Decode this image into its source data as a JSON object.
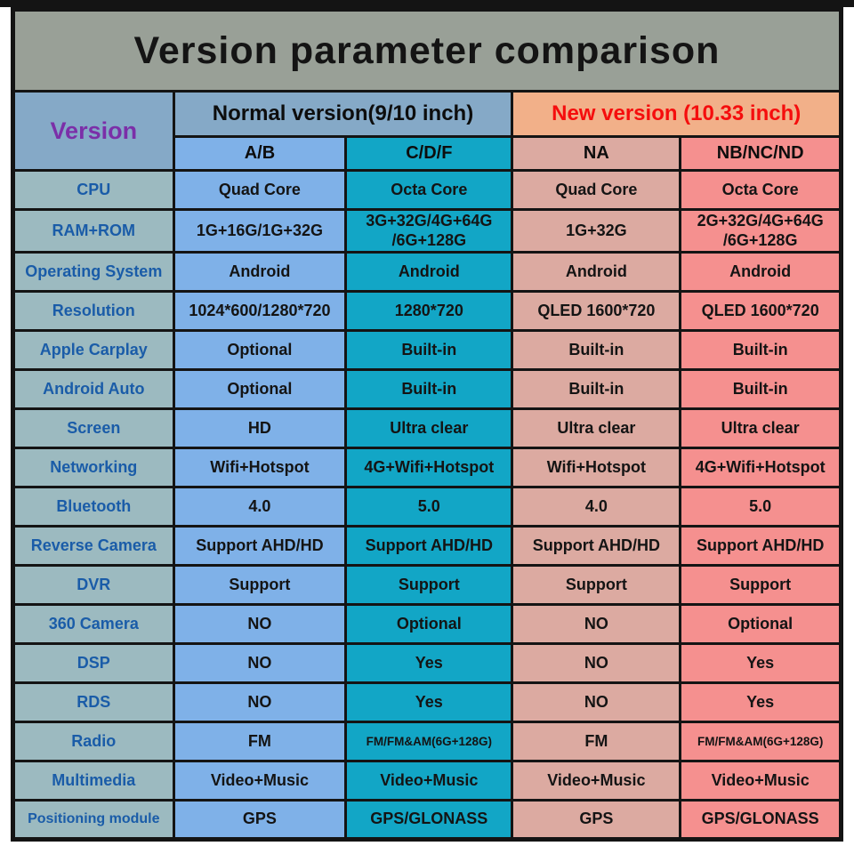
{
  "title": "Version parameter comparison",
  "header": {
    "version_label": "Version",
    "groups": [
      {
        "label": "Normal version(9/10 inch)"
      },
      {
        "label": "New version (10.33 inch)"
      }
    ],
    "columns": [
      {
        "label": "A/B"
      },
      {
        "label": "C/D/F"
      },
      {
        "label": "NA"
      },
      {
        "label": "NB/NC/ND"
      }
    ]
  },
  "rows": [
    {
      "label": "CPU",
      "values": [
        "Quad Core",
        "Octa Core",
        "Quad Core",
        "Octa Core"
      ]
    },
    {
      "label": "RAM+ROM",
      "values": [
        "1G+16G/1G+32G",
        "3G+32G/4G+64G\n/6G+128G",
        "1G+32G",
        "2G+32G/4G+64G\n/6G+128G"
      ]
    },
    {
      "label": "Operating System",
      "values": [
        "Android",
        "Android",
        "Android",
        "Android"
      ]
    },
    {
      "label": "Resolution",
      "values": [
        "1024*600/1280*720",
        "1280*720",
        "QLED 1600*720",
        "QLED 1600*720"
      ]
    },
    {
      "label": "Apple Carplay",
      "values": [
        "Optional",
        "Built-in",
        "Built-in",
        "Built-in"
      ]
    },
    {
      "label": "Android Auto",
      "values": [
        "Optional",
        "Built-in",
        "Built-in",
        "Built-in"
      ]
    },
    {
      "label": "Screen",
      "values": [
        "HD",
        "Ultra clear",
        "Ultra clear",
        "Ultra clear"
      ]
    },
    {
      "label": "Networking",
      "values": [
        "Wifi+Hotspot",
        "4G+Wifi+Hotspot",
        "Wifi+Hotspot",
        "4G+Wifi+Hotspot"
      ]
    },
    {
      "label": "Bluetooth",
      "values": [
        "4.0",
        "5.0",
        "4.0",
        "5.0"
      ]
    },
    {
      "label": "Reverse Camera",
      "values": [
        "Support AHD/HD",
        "Support AHD/HD",
        "Support AHD/HD",
        "Support AHD/HD"
      ]
    },
    {
      "label": "DVR",
      "values": [
        "Support",
        "Support",
        "Support",
        "Support"
      ]
    },
    {
      "label": "360 Camera",
      "values": [
        "NO",
        "Optional",
        "NO",
        "Optional"
      ]
    },
    {
      "label": "DSP",
      "values": [
        "NO",
        "Yes",
        "NO",
        "Yes"
      ]
    },
    {
      "label": "RDS",
      "values": [
        "NO",
        "Yes",
        "NO",
        "Yes"
      ]
    },
    {
      "label": "Radio",
      "values": [
        "FM",
        "FM/FM&AM(6G+128G)",
        "FM",
        "FM/FM&AM(6G+128G)"
      ]
    },
    {
      "label": "Multimedia",
      "values": [
        "Video+Music",
        "Video+Music",
        "Video+Music",
        "Video+Music"
      ]
    },
    {
      "label": "Positioning module",
      "values": [
        "GPS",
        "GPS/GLONASS",
        "GPS",
        "GPS/GLONASS"
      ]
    }
  ],
  "colors": {
    "page_bg": "#ffffff",
    "top_strip": "#141414",
    "border": "#141414",
    "title_bg": "#99A097",
    "title_text": "#141414",
    "version_cell_bg": "#85A9C7",
    "version_text": "#7B2FA8",
    "normal_group_bg": "#85A9C7",
    "new_group_bg": "#F2B089",
    "new_group_text": "#F50D0D",
    "label_col_bg": "#9CBAC0",
    "label_text": "#1A5CA8",
    "col_ab": "#7FB1E8",
    "col_cdf": "#12A6C6",
    "col_na": "#DCAAA1",
    "col_nb": "#F5908F",
    "value_text": "#141414"
  }
}
